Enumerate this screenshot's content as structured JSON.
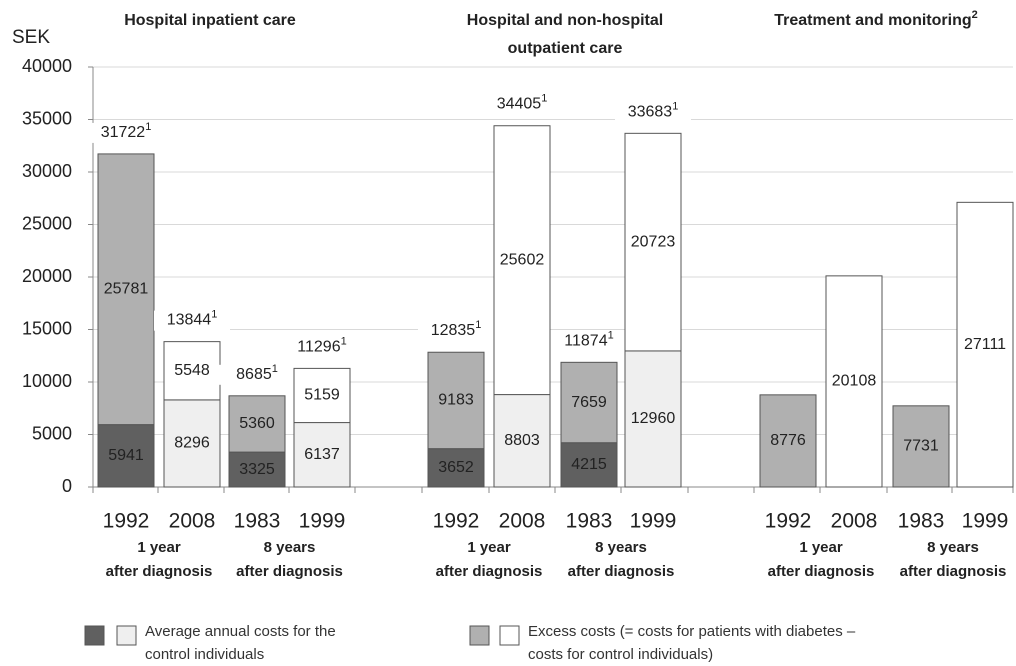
{
  "chart_data": {
    "type": "stacked_bar",
    "ylabel": "SEK",
    "ylim": [
      0,
      40000
    ],
    "yticks": [
      0,
      5000,
      10000,
      15000,
      20000,
      25000,
      30000,
      35000,
      40000
    ],
    "grid": true,
    "panels": [
      {
        "title_lines": [
          "Hospital inpatient care"
        ]
      },
      {
        "title_lines": [
          "Hospital and non-hospital",
          "outpatient care"
        ]
      },
      {
        "title_lines": [
          "Treatment and monitoring"
        ],
        "note": "2"
      }
    ],
    "categories": [
      "1992",
      "2008",
      "1983",
      "1999",
      "1992",
      "2008",
      "1983",
      "1999",
      "1992",
      "2008",
      "1983",
      "1999"
    ],
    "group_labels": [
      [
        "1 year",
        "after diagnosis"
      ],
      [
        "8 years",
        "after diagnosis"
      ],
      [
        "1 year",
        "after diagnosis"
      ],
      [
        "8 years",
        "after diagnosis"
      ],
      [
        "1 year",
        "after diagnosis"
      ],
      [
        "8 years",
        "after diagnosis"
      ]
    ],
    "series": [
      {
        "name": "Average annual costs for the control individuals",
        "legend_colors": [
          "#606060",
          "#efefef"
        ],
        "colors": [
          "#606060",
          "#efefef",
          "#606060",
          "#efefef",
          "#606060",
          "#efefef",
          "#606060",
          "#efefef",
          null,
          null,
          null,
          null
        ],
        "values": [
          5941,
          8296,
          3325,
          6137,
          3652,
          8803,
          4215,
          12960,
          null,
          null,
          null,
          null
        ]
      },
      {
        "name": "Excess costs (= costs for patients with diabetes – costs for control individuals)",
        "legend_colors": [
          "#b0b0b0",
          "#ffffff"
        ],
        "colors": [
          "#b0b0b0",
          "#ffffff",
          "#b0b0b0",
          "#ffffff",
          "#b0b0b0",
          "#ffffff",
          "#b0b0b0",
          "#ffffff",
          "#b0b0b0",
          "#ffffff",
          "#b0b0b0",
          "#ffffff"
        ],
        "values": [
          25781,
          5548,
          5360,
          5159,
          9183,
          25602,
          7659,
          20723,
          8776,
          20108,
          7731,
          27111
        ]
      }
    ],
    "totals": [
      31722,
      13844,
      8685,
      11296,
      12835,
      34405,
      11874,
      33683,
      null,
      null,
      null,
      null
    ],
    "total_note": "1"
  }
}
